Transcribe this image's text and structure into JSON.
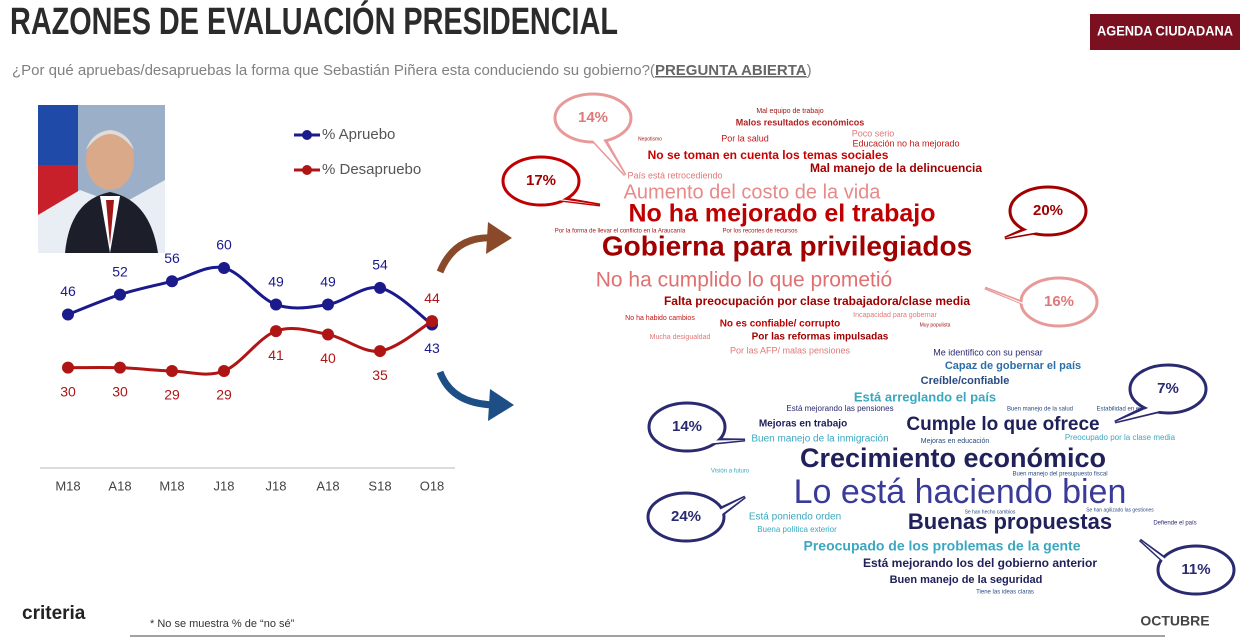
{
  "header": {
    "title": "RAZONES DE EVALUACIÓN PRESIDENCIAL",
    "subtitle": [
      "¿Por qué apruebas/desapruebas la forma que Sebastián Piñera esta conduciendo su gobierno?(",
      "PREGUNTA ABIERTA",
      ")"
    ],
    "badge": "AGENDA CIUDADANA"
  },
  "chart_data": {
    "type": "line",
    "categories": [
      "M18",
      "A18",
      "M18",
      "J18",
      "J18",
      "A18",
      "S18",
      "O18"
    ],
    "series": [
      {
        "name": "% Apruebo",
        "color": "#1a1a8c",
        "values": [
          46,
          52,
          56,
          60,
          49,
          49,
          54,
          43
        ]
      },
      {
        "name": "% Desapruebo",
        "color": "#b01515",
        "values": [
          30,
          30,
          29,
          29,
          41,
          40,
          35,
          44
        ]
      }
    ]
  },
  "disapprove": {
    "words": [
      "Mal equipo de trabajo",
      "Malos resultados económicos",
      "Poco serio",
      "Por la salud",
      "Educación no ha mejorado",
      "No se toman en cuenta los temas sociales",
      "Mal manejo de la delincuencia",
      "País está retrocediendo",
      "Aumento del costo de la vida",
      "No ha mejorado el trabajo",
      "Por la forma de llevar el conflicto en la Araucanía",
      "Por los recortes de recursos",
      "Gobierna para privilegiados",
      "No ha cumplido lo que prometió",
      "Falta preocupación por clase trabajadora/clase media",
      "Incapacidad para gobernar",
      "No ha habido cambios",
      "No es confiable/ corrupto",
      "Por las reformas impulsadas",
      "Mucha desigualdad",
      "Por las AFP/ malas pensiones",
      "Nepotismo",
      "Muy populista"
    ],
    "callouts": [
      "14%",
      "17%",
      "20%",
      "16%"
    ]
  },
  "approve": {
    "words": [
      "Me identifico con su pensar",
      "Capaz de gobernar el país",
      "Creíble/confiable",
      "Está arreglando el país",
      "Está mejorando las pensiones",
      "Buen manejo de la salud",
      "Estabilidad en el país",
      "Mejoras en trabajo",
      "Cumple lo que ofrece",
      "Buen manejo de la inmigración",
      "Mejoras en educación",
      "Preocupado por la clase media",
      "Crecimiento económico",
      "Buen manejo del presupuesto fiscal",
      "Visión a futuro",
      "Lo está haciendo bien",
      "Está poniendo orden",
      "Buenas propuestas",
      "Buena política exterior",
      "Defiende el país",
      "Preocupado de los problemas de la gente",
      "Está mejorando los del gobierno anterior",
      "Buen manejo de la seguridad",
      "Tiene las ideas claras",
      "Se han hecho cambios",
      "Se han agilizado las gestiones"
    ],
    "callouts": [
      "7%",
      "14%",
      "24%",
      "11%"
    ]
  },
  "footer": {
    "logo": "criteria",
    "note": "* No se muestra % de “no sé”",
    "month": "OCTUBRE"
  }
}
